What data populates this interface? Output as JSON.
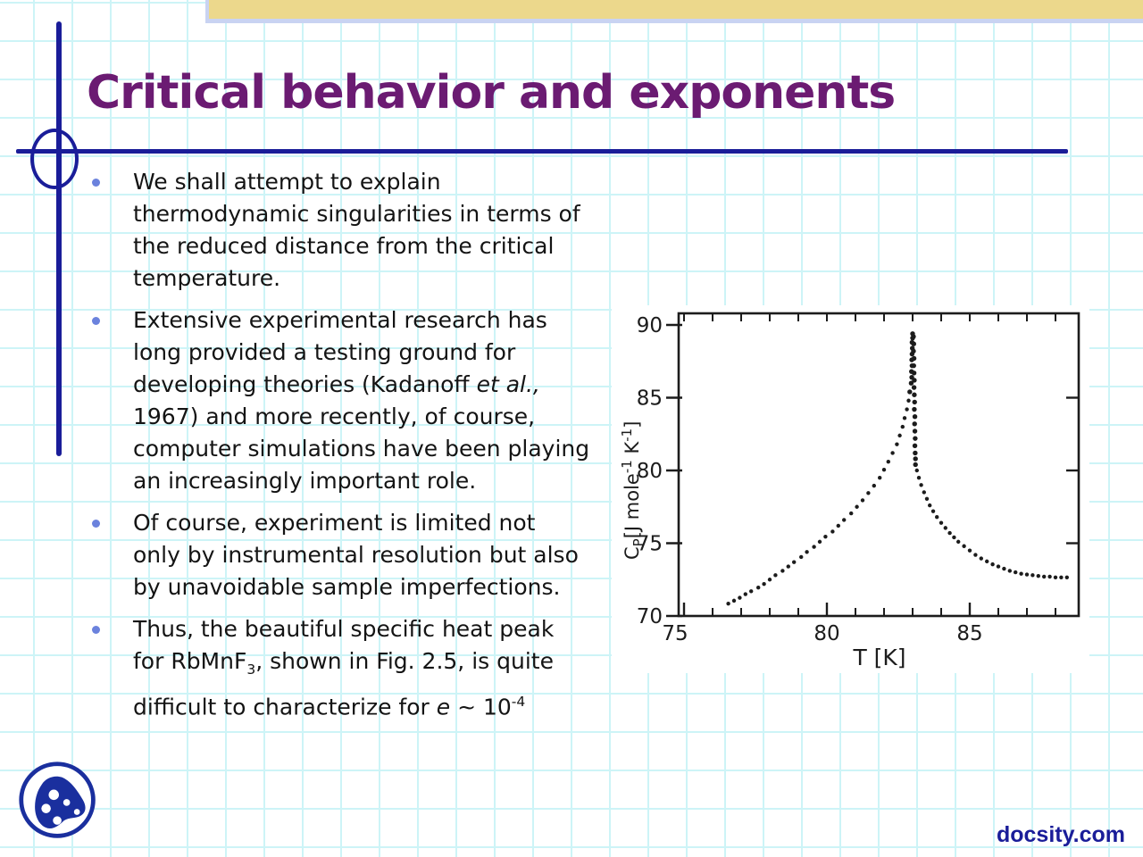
{
  "slide": {
    "title": "Critical behavior and exponents",
    "bullets": [
      {
        "lines": [
          [
            {
              "t": "We shall attempt to explain"
            }
          ],
          [
            {
              "t": "thermodynamic singularities in terms of"
            }
          ],
          [
            {
              "t": "the reduced distance from the critical"
            }
          ],
          [
            {
              "t": "temperature."
            }
          ]
        ]
      },
      {
        "lines": [
          [
            {
              "t": "Extensive experimental research has"
            }
          ],
          [
            {
              "t": "long provided a testing ground for"
            }
          ],
          [
            {
              "t": "developing theories (Kadanoff "
            },
            {
              "t": "et al.,",
              "s": "i"
            }
          ],
          [
            {
              "t": "1967) and more recently, of course,"
            }
          ],
          [
            {
              "t": "computer simulations have been playing"
            }
          ],
          [
            {
              "t": "an increasingly important role."
            }
          ]
        ]
      },
      {
        "lines": [
          [
            {
              "t": "Of course, experiment is limited not"
            }
          ],
          [
            {
              "t": "only by instrumental resolution but also"
            }
          ],
          [
            {
              "t": "by unavoidable sample imperfections."
            }
          ]
        ]
      },
      {
        "lines": [
          [
            {
              "t": "Thus, the beautiful specific heat peak"
            }
          ],
          [
            {
              "t": "for RbMnF"
            },
            {
              "t": "3",
              "s": "sub"
            },
            {
              "t": ", shown in Fig. 2.5, is quite"
            }
          ],
          [
            {
              "t": "difficult to characterize for "
            },
            {
              "t": "e",
              "s": "i"
            },
            {
              "t": " ~ 10"
            },
            {
              "t": "-4",
              "s": "sup"
            }
          ]
        ]
      }
    ],
    "watermark": "docsity.com"
  },
  "colors": {
    "navy": "#1a1d99",
    "title_purple": "#6b1b72",
    "tan": "#ecd88c",
    "shadow_lavender": "#c9d3f2",
    "grid": "#cdf4f7",
    "bullet_dot": "#6b82dd",
    "body_text": "#141414",
    "chart_ink": "#1c1c1c"
  },
  "chart_data": {
    "type": "scatter",
    "title": "",
    "xlabel": "T [K]",
    "ylabel": "CP[J mole-1 K-1]",
    "ylabel_parts": [
      {
        "t": "C"
      },
      {
        "t": "P",
        "s": "sub"
      },
      {
        "t": "[J mole"
      },
      {
        "t": "-1",
        "s": "sup"
      },
      {
        "t": " K",
        "s": "n"
      },
      {
        "t": "-1",
        "s": "sup"
      },
      {
        "t": "]",
        "s": "n"
      }
    ],
    "xlim": [
      74.8,
      88.8
    ],
    "ylim": [
      70,
      90.8
    ],
    "xtick_labels": [
      75,
      80,
      85
    ],
    "ytick_labels": [
      70,
      75,
      80,
      85,
      90
    ],
    "right_ticks": [
      75,
      80,
      85
    ],
    "minor_xtick_step": 1,
    "peak": {
      "T": 83.0,
      "Cp_max": 89.5
    },
    "points": [
      [
        76.55,
        70.85
      ],
      [
        76.75,
        71.05
      ],
      [
        76.95,
        71.25
      ],
      [
        77.15,
        71.5
      ],
      [
        77.35,
        71.7
      ],
      [
        77.6,
        71.95
      ],
      [
        77.8,
        72.2
      ],
      [
        78.0,
        72.5
      ],
      [
        78.2,
        72.8
      ],
      [
        78.45,
        73.1
      ],
      [
        78.65,
        73.4
      ],
      [
        78.85,
        73.7
      ],
      [
        79.1,
        74.05
      ],
      [
        79.3,
        74.4
      ],
      [
        79.55,
        74.75
      ],
      [
        79.75,
        75.1
      ],
      [
        79.95,
        75.45
      ],
      [
        80.2,
        75.8
      ],
      [
        80.4,
        76.2
      ],
      [
        80.6,
        76.6
      ],
      [
        80.85,
        77.05
      ],
      [
        81.05,
        77.5
      ],
      [
        81.25,
        77.95
      ],
      [
        81.45,
        78.45
      ],
      [
        81.65,
        78.95
      ],
      [
        81.85,
        79.5
      ],
      [
        82.0,
        80.05
      ],
      [
        82.15,
        80.6
      ],
      [
        82.3,
        81.2
      ],
      [
        82.45,
        81.8
      ],
      [
        82.55,
        82.4
      ],
      [
        82.65,
        83.0
      ],
      [
        82.72,
        83.6
      ],
      [
        82.8,
        84.2
      ],
      [
        82.86,
        84.8
      ],
      [
        82.9,
        85.4
      ],
      [
        82.95,
        86.0
      ],
      [
        82.97,
        86.4
      ],
      [
        82.96,
        86.8
      ],
      [
        82.98,
        87.2
      ],
      [
        82.97,
        87.6
      ],
      [
        82.98,
        88.0
      ],
      [
        82.99,
        88.4
      ],
      [
        82.98,
        88.8
      ],
      [
        83.0,
        89.1
      ],
      [
        83.0,
        89.4
      ],
      [
        83.03,
        89.2
      ],
      [
        83.04,
        88.7
      ],
      [
        83.03,
        88.2
      ],
      [
        83.05,
        87.7
      ],
      [
        83.04,
        87.2
      ],
      [
        83.05,
        86.7
      ],
      [
        83.06,
        86.2
      ],
      [
        83.05,
        85.7
      ],
      [
        83.06,
        85.2
      ],
      [
        83.07,
        84.7
      ],
      [
        83.06,
        84.2
      ],
      [
        83.08,
        83.7
      ],
      [
        83.07,
        83.2
      ],
      [
        83.08,
        82.7
      ],
      [
        83.09,
        82.2
      ],
      [
        83.08,
        81.7
      ],
      [
        83.09,
        81.2
      ],
      [
        83.1,
        80.8
      ],
      [
        83.1,
        80.4
      ],
      [
        83.15,
        80.0
      ],
      [
        83.22,
        79.5
      ],
      [
        83.3,
        79.0
      ],
      [
        83.4,
        78.5
      ],
      [
        83.5,
        78.05
      ],
      [
        83.6,
        77.6
      ],
      [
        83.72,
        77.2
      ],
      [
        83.85,
        76.8
      ],
      [
        84.0,
        76.4
      ],
      [
        84.15,
        76.05
      ],
      [
        84.3,
        75.7
      ],
      [
        84.45,
        75.4
      ],
      [
        84.6,
        75.1
      ],
      [
        84.8,
        74.8
      ],
      [
        85.0,
        74.5
      ],
      [
        85.2,
        74.2
      ],
      [
        85.4,
        73.95
      ],
      [
        85.6,
        73.75
      ],
      [
        85.8,
        73.55
      ],
      [
        86.0,
        73.4
      ],
      [
        86.2,
        73.25
      ],
      [
        86.4,
        73.1
      ],
      [
        86.6,
        73.0
      ],
      [
        86.8,
        72.9
      ],
      [
        87.0,
        72.85
      ],
      [
        87.2,
        72.8
      ],
      [
        87.4,
        72.75
      ],
      [
        87.6,
        72.7
      ],
      [
        87.8,
        72.7
      ],
      [
        88.0,
        72.65
      ],
      [
        88.2,
        72.65
      ],
      [
        88.4,
        72.65
      ]
    ]
  }
}
